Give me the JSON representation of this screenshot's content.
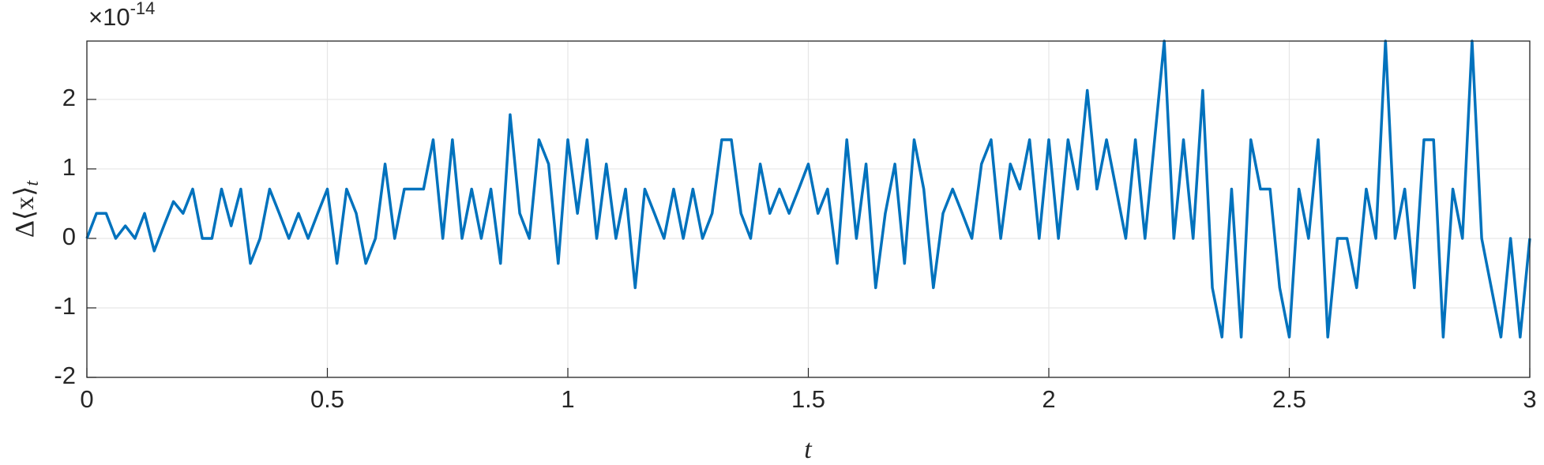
{
  "chart_data": {
    "type": "line",
    "xlabel": "t",
    "ylabel": "Δ⟨x⟩",
    "ylabel_subscript": "t",
    "y_exponent_base": "×10",
    "y_exponent_power": "-14",
    "x": [
      0,
      0.02,
      0.04,
      0.06,
      0.08,
      0.1,
      0.12,
      0.14,
      0.16,
      0.18,
      0.2,
      0.22,
      0.24,
      0.26,
      0.28,
      0.3,
      0.32,
      0.34,
      0.36,
      0.38,
      0.4,
      0.42,
      0.44,
      0.46,
      0.48,
      0.5,
      0.52,
      0.54,
      0.56,
      0.58,
      0.6,
      0.62,
      0.64,
      0.66,
      0.68,
      0.7,
      0.72,
      0.74,
      0.76,
      0.78,
      0.8,
      0.82,
      0.84,
      0.86,
      0.88,
      0.9,
      0.92,
      0.94,
      0.96,
      0.98,
      1,
      1.02,
      1.04,
      1.06,
      1.08,
      1.1,
      1.12,
      1.14,
      1.16,
      1.18,
      1.2,
      1.22,
      1.24,
      1.26,
      1.28,
      1.3,
      1.32,
      1.34,
      1.36,
      1.38,
      1.4,
      1.42,
      1.44,
      1.46,
      1.48,
      1.5,
      1.52,
      1.54,
      1.56,
      1.58,
      1.6,
      1.62,
      1.64,
      1.66,
      1.68,
      1.7,
      1.72,
      1.74,
      1.76,
      1.78,
      1.8,
      1.82,
      1.84,
      1.86,
      1.88,
      1.9,
      1.92,
      1.94,
      1.96,
      1.98,
      2,
      2.02,
      2.04,
      2.06,
      2.08,
      2.1,
      2.12,
      2.14,
      2.16,
      2.18,
      2.2,
      2.22,
      2.24,
      2.26,
      2.28,
      2.3,
      2.32,
      2.34,
      2.36,
      2.38,
      2.4,
      2.42,
      2.44,
      2.46,
      2.48,
      2.5,
      2.52,
      2.54,
      2.56,
      2.58,
      2.6,
      2.62,
      2.64,
      2.66,
      2.68,
      2.7,
      2.72,
      2.74,
      2.76,
      2.78,
      2.8,
      2.82,
      2.84,
      2.86,
      2.88,
      2.9,
      2.92,
      2.94,
      2.96,
      2.98,
      3
    ],
    "series": [
      {
        "color": "#0072bd",
        "values": [
          0,
          0.36,
          0.36,
          0,
          0.18,
          0,
          0.36,
          -0.18,
          0.18,
          0.53,
          0.36,
          0.71,
          0,
          0,
          0.71,
          0.18,
          0.71,
          -0.36,
          0,
          0.71,
          0.36,
          0,
          0.36,
          0,
          0.36,
          0.71,
          -0.36,
          0.71,
          0.36,
          -0.36,
          0,
          1.07,
          0,
          0.71,
          0.71,
          0.71,
          1.42,
          0,
          1.42,
          0,
          0.71,
          0,
          0.71,
          -0.36,
          1.78,
          0.36,
          0,
          1.42,
          1.07,
          -0.36,
          1.42,
          0.36,
          1.42,
          0,
          1.07,
          0,
          0.71,
          -0.71,
          0.71,
          0.36,
          0,
          0.71,
          0,
          0.71,
          0,
          0.36,
          1.42,
          1.42,
          0.36,
          0,
          1.07,
          0.36,
          0.71,
          0.36,
          0.71,
          1.07,
          0.36,
          0.71,
          -0.36,
          1.42,
          0,
          1.07,
          -0.71,
          0.36,
          1.07,
          -0.36,
          1.42,
          0.71,
          -0.71,
          0.36,
          0.71,
          0.36,
          0,
          1.07,
          1.42,
          0,
          1.07,
          0.71,
          1.42,
          0,
          1.42,
          0,
          1.42,
          0.71,
          2.13,
          0.71,
          1.42,
          0.71,
          0,
          1.42,
          0,
          1.42,
          2.84,
          0,
          1.42,
          0,
          2.13,
          -0.71,
          -1.42,
          0.71,
          -1.42,
          1.42,
          0.71,
          0.71,
          -0.71,
          -1.42,
          0.71,
          0,
          1.42,
          -1.42,
          0,
          0,
          -0.71,
          0.71,
          0,
          2.84,
          0,
          0.71,
          -0.71,
          1.42,
          1.42,
          -1.42,
          0.71,
          0,
          2.84,
          0,
          -0.71,
          -1.42,
          0,
          -1.42,
          0
        ]
      }
    ],
    "xlim": [
      0,
      3
    ],
    "xticks": [
      0,
      0.5,
      1,
      1.5,
      2,
      2.5,
      3
    ],
    "ylim": [
      -2,
      2.84
    ],
    "yticks": [
      -2,
      -1,
      0,
      1,
      2
    ],
    "grid": true
  }
}
